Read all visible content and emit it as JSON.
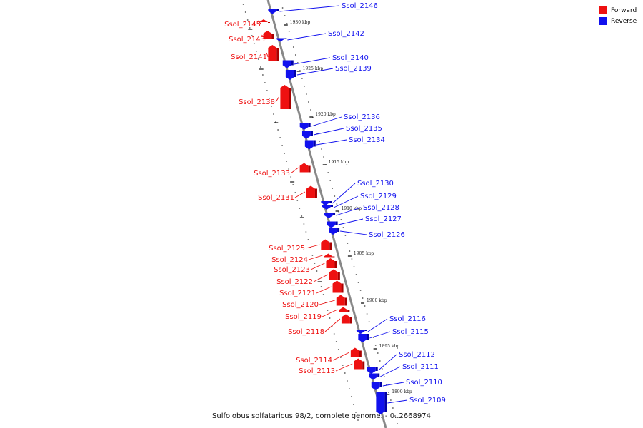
{
  "legend": {
    "forward": "Forward",
    "reverse": "Reverse"
  },
  "colors": {
    "forward": "#ee1111",
    "reverse": "#1111ee",
    "forward_side": "#aa0000",
    "reverse_side": "#0000aa",
    "axis": "#888888"
  },
  "caption": "Sulfolobus solfataricus 98/2, complete genome. - 0..2668974",
  "ticks": [
    "1930 kbp",
    "1925 kbp",
    "1920 kbp",
    "1915 kbp",
    "1910 kbp",
    "1905 kbp",
    "1900 kbp",
    "1895 kbp",
    "1890 kbp"
  ],
  "genes": [
    {
      "name": "Ssol_2146",
      "strand": "reverse"
    },
    {
      "name": "Ssol_2145",
      "strand": "forward"
    },
    {
      "name": "Ssol_2143",
      "strand": "forward"
    },
    {
      "name": "Ssol_2142",
      "strand": "reverse"
    },
    {
      "name": "Ssol_2141",
      "strand": "forward"
    },
    {
      "name": "Ssol_2140",
      "strand": "reverse"
    },
    {
      "name": "Ssol_2139",
      "strand": "reverse"
    },
    {
      "name": "Ssol_2138",
      "strand": "forward"
    },
    {
      "name": "Ssol_2136",
      "strand": "reverse"
    },
    {
      "name": "Ssol_2135",
      "strand": "reverse"
    },
    {
      "name": "Ssol_2134",
      "strand": "reverse"
    },
    {
      "name": "Ssol_2133",
      "strand": "forward"
    },
    {
      "name": "Ssol_2131",
      "strand": "forward"
    },
    {
      "name": "Ssol_2130",
      "strand": "reverse"
    },
    {
      "name": "Ssol_2129",
      "strand": "reverse"
    },
    {
      "name": "Ssol_2128",
      "strand": "reverse"
    },
    {
      "name": "Ssol_2127",
      "strand": "reverse"
    },
    {
      "name": "Ssol_2126",
      "strand": "reverse"
    },
    {
      "name": "Ssol_2125",
      "strand": "forward"
    },
    {
      "name": "Ssol_2124",
      "strand": "forward"
    },
    {
      "name": "Ssol_2123",
      "strand": "forward"
    },
    {
      "name": "Ssol_2122",
      "strand": "forward"
    },
    {
      "name": "Ssol_2121",
      "strand": "forward"
    },
    {
      "name": "Ssol_2120",
      "strand": "forward"
    },
    {
      "name": "Ssol_2119",
      "strand": "forward"
    },
    {
      "name": "Ssol_2118",
      "strand": "forward"
    },
    {
      "name": "Ssol_2116",
      "strand": "reverse"
    },
    {
      "name": "Ssol_2115",
      "strand": "reverse"
    },
    {
      "name": "Ssol_2114",
      "strand": "forward"
    },
    {
      "name": "Ssol_2113",
      "strand": "forward"
    },
    {
      "name": "Ssol_2112",
      "strand": "reverse"
    },
    {
      "name": "Ssol_2111",
      "strand": "reverse"
    },
    {
      "name": "Ssol_2110",
      "strand": "reverse"
    },
    {
      "name": "Ssol_2109",
      "strand": "reverse"
    }
  ]
}
